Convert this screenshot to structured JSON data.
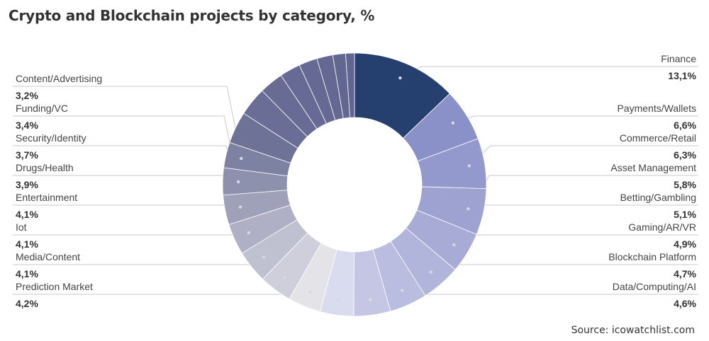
{
  "title": "Crypto and Blockchain projects by category, %",
  "source": "Source: icowatchlist.com",
  "chart_data": {
    "type": "pie",
    "donut": true,
    "slices": [
      {
        "label": "Finance",
        "value": 13.1,
        "display": "13,1%"
      },
      {
        "label": "Payments/Wallets",
        "value": 6.6,
        "display": "6,6%"
      },
      {
        "label": "Commerce/Retail",
        "value": 6.3,
        "display": "6,3%"
      },
      {
        "label": "Asset Management",
        "value": 5.8,
        "display": "5,8%"
      },
      {
        "label": "Betting/Gambling",
        "value": 5.1,
        "display": "5,1%"
      },
      {
        "label": "Gaming/AR/VR",
        "value": 4.9,
        "display": "4,9%"
      },
      {
        "label": "Blockchain Platform",
        "value": 4.7,
        "display": "4,7%"
      },
      {
        "label": "Data/Computing/AI",
        "value": 4.6,
        "display": "4,6%"
      },
      {
        "label": "Prediction Market",
        "value": 4.2,
        "display": "4,2%"
      },
      {
        "label": "Media/Content",
        "value": 4.1,
        "display": "4,1%"
      },
      {
        "label": "Iot",
        "value": 4.1,
        "display": "4,1%"
      },
      {
        "label": "Entertainment",
        "value": 4.1,
        "display": "4,1%"
      },
      {
        "label": "Drugs/Health",
        "value": 3.9,
        "display": "3,9%"
      },
      {
        "label": "Security/Identity",
        "value": 3.7,
        "display": "3,7%"
      },
      {
        "label": "Funding/VC",
        "value": 3.4,
        "display": "3,4%"
      },
      {
        "label": "Content/Advertising",
        "value": 3.2,
        "display": "3,2%"
      },
      {
        "value": 4.0
      },
      {
        "value": 3.6
      },
      {
        "value": 3.0
      },
      {
        "value": 2.6
      },
      {
        "value": 2.3
      },
      {
        "value": 2.0
      },
      {
        "value": 1.6
      },
      {
        "value": 1.1
      }
    ],
    "colors": {
      "finance": "#253f6f",
      "right_range": [
        "#8a90c8",
        "#c4c6e4"
      ],
      "bottom_range": [
        "#d9dbef",
        "#e4e4e8"
      ],
      "left_range": [
        "#cfcfdc",
        "#6e7296"
      ],
      "top_left_range": [
        "#6a6d95",
        "#5f6490"
      ],
      "leader_line": "#c8c8c8",
      "marker": "#d8d8e0"
    }
  }
}
